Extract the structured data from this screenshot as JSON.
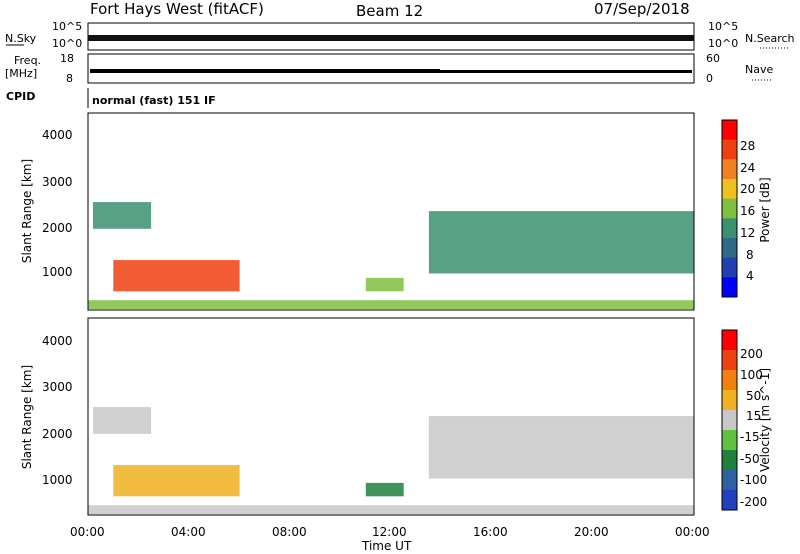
{
  "header": {
    "station": "Fort Hays West (fitACF)",
    "beam": "Beam 12",
    "date": "07/Sep/2018"
  },
  "noise_panel": {
    "left_label": "N.Sky",
    "right_label": "N.Search",
    "left_ticks": [
      "10^5",
      "10^0"
    ],
    "right_ticks": [
      "10^5",
      "10^0"
    ]
  },
  "freq_panel": {
    "left_label_1": "Freq.",
    "left_label_2": "[MHz]",
    "right_label": "Nave",
    "left_ticks": [
      "18",
      "8"
    ],
    "right_ticks": [
      "60",
      "0"
    ]
  },
  "cpid_panel": {
    "label": "CPID",
    "text": "normal (fast) 151 IF"
  },
  "x_axis": {
    "label": "Time UT",
    "ticks": [
      "00:00",
      "04:00",
      "08:00",
      "12:00",
      "16:00",
      "20:00",
      "00:00"
    ]
  },
  "power_panel": {
    "ylabel": "Slant Range [km]",
    "yticks": [
      "4000",
      "3000",
      "2000",
      "1000"
    ],
    "colorbar_label": "Power [dB]",
    "colorbar_ticks": [
      "28",
      "24",
      "20",
      "16",
      "12",
      "8",
      "4"
    ],
    "colors": [
      "#0000ff",
      "#2040b0",
      "#306a8a",
      "#3c9070",
      "#80c040",
      "#f0c020",
      "#f08020",
      "#f04010",
      "#ff0000"
    ]
  },
  "velocity_panel": {
    "ylabel": "Slant Range [km]",
    "yticks": [
      "4000",
      "3000",
      "2000",
      "1000"
    ],
    "colorbar_label": "Velocity [m s^-1]",
    "colorbar_ticks": [
      "200",
      "100",
      "50",
      "15",
      "-15",
      "-50",
      "-100",
      "-200"
    ],
    "colors": [
      "#2040c0",
      "#3060a0",
      "#208040",
      "#60c040",
      "#c8c8c8",
      "#f0b020",
      "#f08010",
      "#f04010",
      "#ff0000"
    ]
  },
  "chart_data": [
    {
      "type": "heatmap",
      "title": "Power [dB]",
      "xlabel": "Time UT",
      "ylabel": "Slant Range [km]",
      "xlim": [
        "00:00",
        "24:00"
      ],
      "ylim": [
        180,
        4600
      ],
      "colorbar": {
        "label": "Power [dB]",
        "range": [
          0,
          30
        ]
      },
      "regions": [
        {
          "t_start": 0.2,
          "t_end": 2.5,
          "range_start": 2000,
          "range_end": 2600,
          "value": 12
        },
        {
          "t_start": 1.0,
          "t_end": 6.0,
          "range_start": 600,
          "range_end": 1300,
          "value": 26
        },
        {
          "t_start": 0.0,
          "t_end": 24.0,
          "range_start": 200,
          "range_end": 400,
          "value": 14
        },
        {
          "t_start": 11.0,
          "t_end": 12.5,
          "range_start": 600,
          "range_end": 900,
          "value": 14
        },
        {
          "t_start": 13.5,
          "t_end": 24.0,
          "range_start": 1000,
          "range_end": 2400,
          "value": 10
        }
      ]
    },
    {
      "type": "heatmap",
      "title": "Velocity [m s^-1]",
      "xlabel": "Time UT",
      "ylabel": "Slant Range [km]",
      "xlim": [
        "00:00",
        "24:00"
      ],
      "ylim": [
        180,
        4600
      ],
      "colorbar": {
        "label": "Velocity [m s^-1]",
        "range": [
          -200,
          200
        ]
      },
      "regions": [
        {
          "t_start": 0.2,
          "t_end": 2.5,
          "range_start": 2000,
          "range_end": 2600,
          "value": 0
        },
        {
          "t_start": 1.0,
          "t_end": 6.0,
          "range_start": 600,
          "range_end": 1300,
          "value": 50
        },
        {
          "t_start": 0.0,
          "t_end": 24.0,
          "range_start": 200,
          "range_end": 400,
          "value": 20
        },
        {
          "t_start": 11.0,
          "t_end": 12.5,
          "range_start": 600,
          "range_end": 900,
          "value": -80
        },
        {
          "t_start": 13.5,
          "t_end": 24.0,
          "range_start": 1000,
          "range_end": 2400,
          "value": 0
        }
      ]
    }
  ]
}
